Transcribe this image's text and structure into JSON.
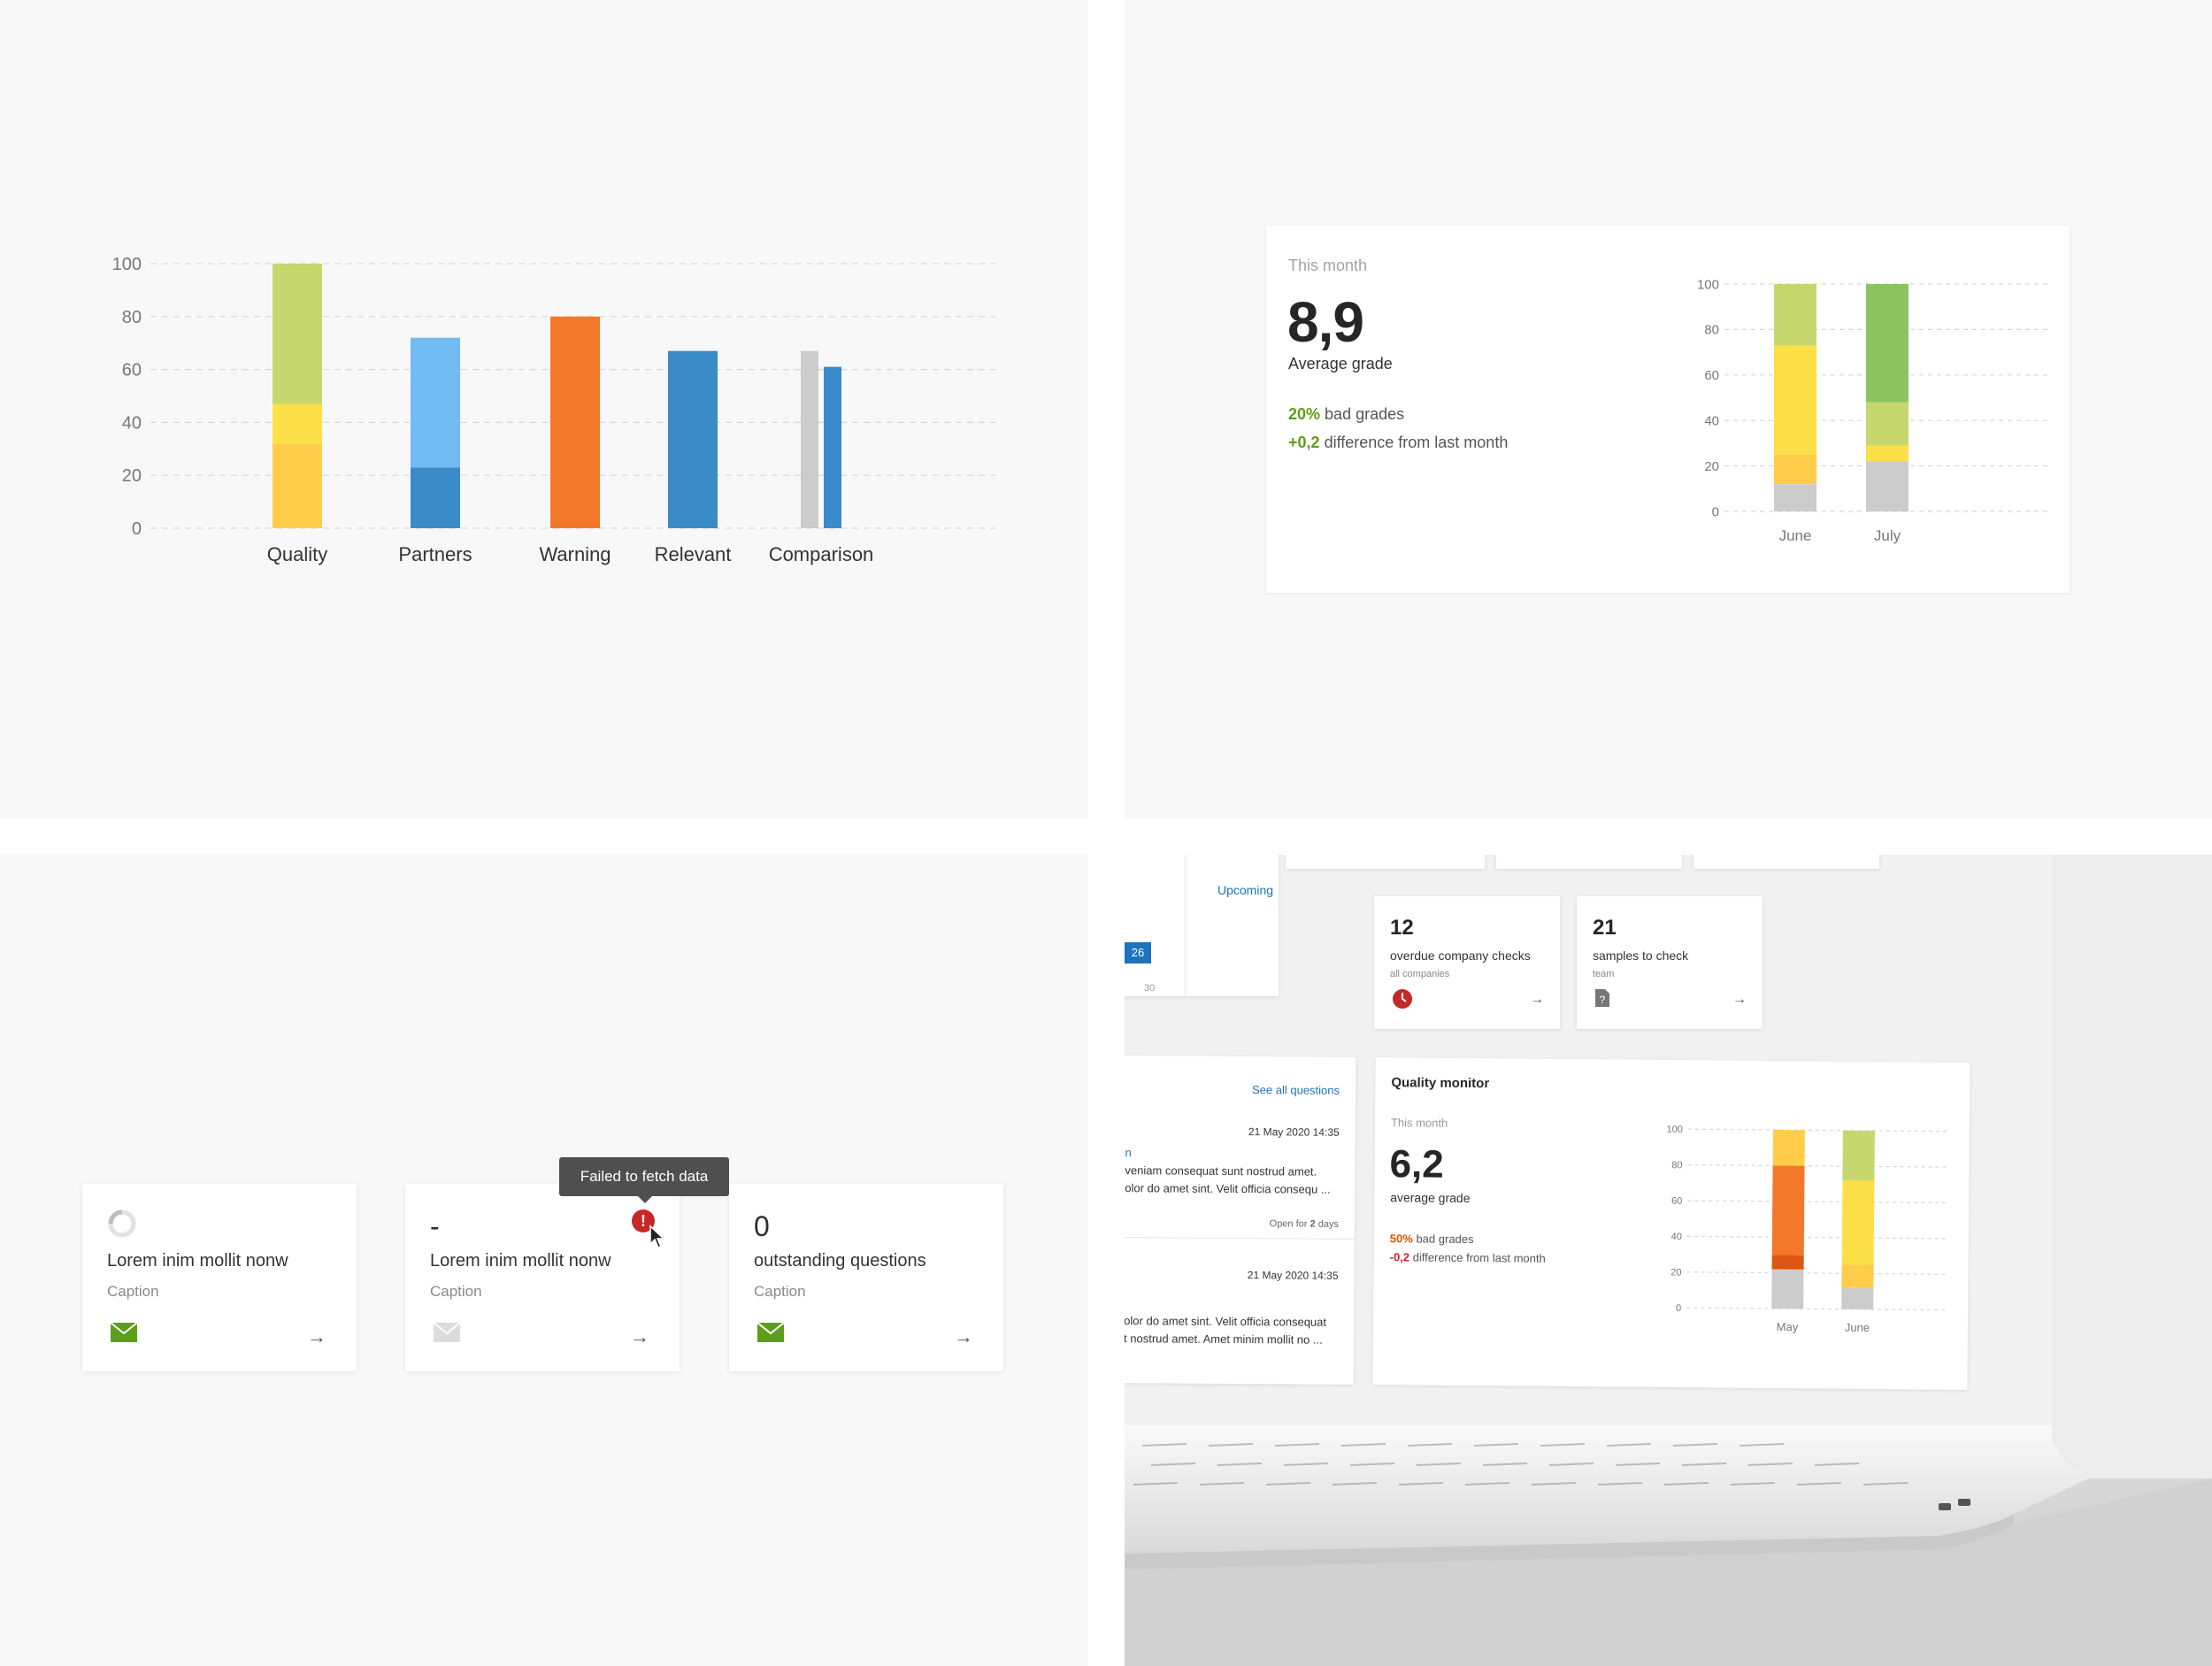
{
  "colors": {
    "light_green": "#c6d76e",
    "green": "#8cc363",
    "yellow": "#fde047",
    "amber": "#ffcd4a",
    "orange": "#f4782a",
    "dark_orange": "#dd5511",
    "light_blue": "#72bcf3",
    "blue": "#3a8bc7",
    "grey": "#cccccc",
    "accent_blue": "#1e73be",
    "error_red": "#c62828",
    "mail_green": "#5e9d1a"
  },
  "chart_data": [
    {
      "type": "bar",
      "title": "",
      "xlabel": "",
      "ylabel": "",
      "ylim": [
        0,
        100
      ],
      "y_ticks": [
        "0",
        "20",
        "40",
        "60",
        "80",
        "100"
      ],
      "grid": true,
      "categories": [
        "Quality",
        "Partners",
        "Warning",
        "Relevant",
        "Comparison"
      ],
      "bars": [
        {
          "category": "Quality",
          "segments": [
            {
              "value": 32,
              "color": "#ffcd4a"
            },
            {
              "value": 15,
              "color": "#fde047"
            },
            {
              "value": 53,
              "color": "#c6d76e"
            }
          ]
        },
        {
          "category": "Partners",
          "segments": [
            {
              "value": 23,
              "color": "#3a8bc7"
            },
            {
              "value": 49,
              "color": "#72bcf3"
            }
          ]
        },
        {
          "category": "Warning",
          "segments": [
            {
              "value": 80,
              "color": "#f4782a"
            }
          ]
        },
        {
          "category": "Relevant",
          "segments": [
            {
              "value": 67,
              "color": "#3a8bc7"
            }
          ]
        },
        {
          "category": "Comparison",
          "paired": [
            {
              "value": 67,
              "color": "#cccccc"
            },
            {
              "value": 61,
              "color": "#3a8bc7"
            }
          ]
        }
      ]
    },
    {
      "type": "bar",
      "title": "",
      "ylim": [
        0,
        100
      ],
      "y_ticks": [
        "0",
        "20",
        "40",
        "60",
        "80",
        "100"
      ],
      "grid": true,
      "categories": [
        "June",
        "July"
      ],
      "bars": [
        {
          "category": "June",
          "segments": [
            {
              "value": 12,
              "color": "#cccccc"
            },
            {
              "value": 13,
              "color": "#ffcd4a"
            },
            {
              "value": 48,
              "color": "#fde047"
            },
            {
              "value": 27,
              "color": "#c6d76e"
            }
          ]
        },
        {
          "category": "July",
          "segments": [
            {
              "value": 22,
              "color": "#cccccc"
            },
            {
              "value": 7,
              "color": "#fde047"
            },
            {
              "value": 19,
              "color": "#c6d76e"
            },
            {
              "value": 52,
              "color": "#8cc363"
            }
          ]
        }
      ]
    },
    {
      "type": "bar",
      "title": "",
      "ylim": [
        0,
        100
      ],
      "y_ticks": [
        "0",
        "20",
        "40",
        "60",
        "80",
        "100"
      ],
      "grid": true,
      "categories": [
        "May",
        "June"
      ],
      "bars": [
        {
          "category": "May",
          "segments": [
            {
              "value": 22,
              "color": "#cccccc"
            },
            {
              "value": 8,
              "color": "#dd5511"
            },
            {
              "value": 50,
              "color": "#f4782a"
            },
            {
              "value": 20,
              "color": "#ffcd4a"
            }
          ]
        },
        {
          "category": "June",
          "segments": [
            {
              "value": 12,
              "color": "#cccccc"
            },
            {
              "value": 13,
              "color": "#ffcd4a"
            },
            {
              "value": 47,
              "color": "#fde047"
            },
            {
              "value": 28,
              "color": "#c6d76e"
            }
          ]
        }
      ]
    }
  ],
  "stat_card": {
    "period": "This month",
    "value": "8,9",
    "label": "Average grade",
    "bad_pct": "20%",
    "bad_text": "bad grades",
    "diff": "+0,2",
    "diff_text": "difference from last month"
  },
  "cards": [
    {
      "value": "",
      "title": "Lorem inim mollit nonw",
      "caption": "Caption",
      "arrow": "→",
      "state": "loading"
    },
    {
      "value": "-",
      "title": "Lorem inim mollit nonw",
      "caption": "Caption",
      "arrow": "→",
      "state": "error"
    },
    {
      "value": "0",
      "title": "outstanding questions",
      "caption": "Caption",
      "arrow": "→",
      "state": "ok"
    }
  ],
  "tooltip": "Failed to fetch data",
  "error_mark": "!",
  "laptop": {
    "upcoming": "Upcoming",
    "date_highlight": "26",
    "date_other": "30",
    "overdue": {
      "value": "12",
      "title": "overdue company checks",
      "sub": "all companies",
      "arrow": "→"
    },
    "samples": {
      "value": "21",
      "title": "samples to check",
      "sub": "team",
      "arrow": "→"
    },
    "questions": {
      "see_all": "See all questions",
      "items": [
        {
          "date": "21 May 2020 14:35",
          "line1": "n",
          "line2": "veniam consequat sunt nostrud amet.",
          "line3": "olor do amet sint. Velit officia consequ ...",
          "open_label": "Open for",
          "open_value": "2",
          "open_unit": "days"
        },
        {
          "date": "21 May 2020 14:35",
          "line1": "olor do amet sint. Velit officia consequat",
          "line2": "t nostrud amet. Amet minim mollit no ..."
        }
      ]
    },
    "quality_monitor": {
      "title": "Quality monitor",
      "period": "This month",
      "value": "6,2",
      "label": "average grade",
      "bad_pct": "50%",
      "bad_text": "bad grades",
      "diff": "-0,2",
      "diff_text": "difference from last month"
    }
  }
}
